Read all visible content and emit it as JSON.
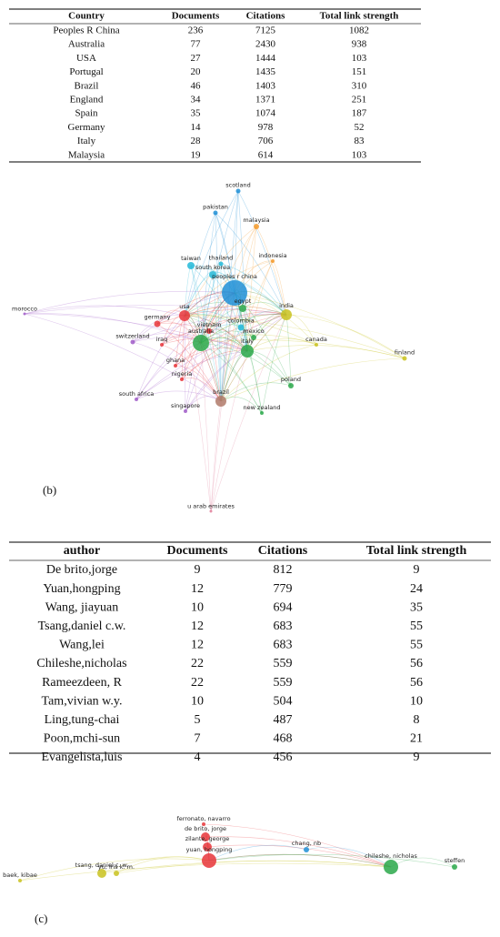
{
  "table1": {
    "header": [
      "Country",
      "Documents",
      "Citations",
      "Total link strength"
    ],
    "rows": [
      [
        "Peoples R China",
        "236",
        "7125",
        "1082"
      ],
      [
        "Australia",
        "77",
        "2430",
        "938"
      ],
      [
        "USA",
        "27",
        "1444",
        "103"
      ],
      [
        "Portugal",
        "20",
        "1435",
        "151"
      ],
      [
        "Brazil",
        "46",
        "1403",
        "310"
      ],
      [
        "England",
        "34",
        "1371",
        "251"
      ],
      [
        "Spain",
        "35",
        "1074",
        "187"
      ],
      [
        "Germany",
        "14",
        "978",
        "52"
      ],
      [
        "Italy",
        "28",
        "706",
        "83"
      ],
      [
        "Malaysia",
        "19",
        "614",
        "103"
      ]
    ]
  },
  "network_b": {
    "label": "(b)",
    "nodes": [
      "scotland",
      "pakistan",
      "malaysia",
      "indonesia",
      "thailand",
      "taiwan",
      "south korea",
      "peoples r china",
      "egypt",
      "india",
      "morocco",
      "germany",
      "usa",
      "vietnam",
      "colombia",
      "mexico",
      "switzerland",
      "iraq",
      "australia",
      "italy",
      "canada",
      "finland",
      "ghana",
      "nigeria",
      "poland",
      "south africa",
      "singapore",
      "brazil",
      "new zealand",
      "u arab emirates"
    ]
  },
  "table2": {
    "header": [
      "author",
      "Documents",
      "Citations",
      "Total link strength"
    ],
    "rows": [
      [
        "De brito,jorge",
        "9",
        "812",
        "9"
      ],
      [
        "Yuan,hongping",
        "12",
        "779",
        "24"
      ],
      [
        "Wang, jiayuan",
        "10",
        "694",
        "35"
      ],
      [
        "Tsang,daniel c.w.",
        "12",
        "683",
        "55"
      ],
      [
        "Wang,lei",
        "12",
        "683",
        "55"
      ],
      [
        "Chileshe,nicholas",
        "22",
        "559",
        "56"
      ],
      [
        "Rameezdeen, R",
        "22",
        "559",
        "56"
      ],
      [
        "Tam,vivian w.y.",
        "10",
        "504",
        "10"
      ],
      [
        "Ling,tung-chai",
        "5",
        "487",
        "8"
      ],
      [
        "Poon,mchi-sun",
        "7",
        "468",
        "21"
      ],
      [
        "Evangelista,luis",
        "4",
        "456",
        "9"
      ]
    ]
  },
  "network_c": {
    "label": "(c)",
    "nodes": [
      "ferronato, navarro",
      "de brito, jorge",
      "zilante, george",
      "yuan, hongping",
      "tsang, daniel c. w.",
      "yu, iris k. m.",
      "baek, kibae",
      "chang, nb",
      "chileshe, nicholas",
      "steffen"
    ]
  }
}
